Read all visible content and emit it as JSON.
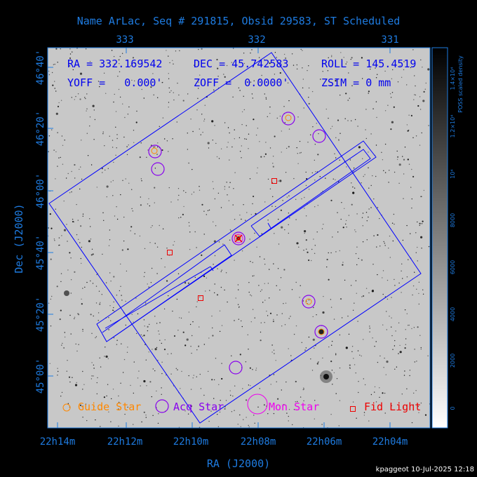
{
  "title": "Name ArLac, Seq # 291815, Obsid 29583, ST Scheduled",
  "footer": "kpaggeot 10-Jul-2025 12:18",
  "x_axis": {
    "label": "RA (J2000)",
    "bottom_ticks": [
      "22h14m",
      "22h12m",
      "22h10m",
      "22h08m",
      "22h06m",
      "22h04m"
    ],
    "top_ticks": [
      "333",
      "332",
      "331"
    ]
  },
  "y_axis": {
    "label": "Dec (J2000)",
    "ticks": [
      "46°40'",
      "46°20'",
      "46°00'",
      "45°40'",
      "45°20'",
      "45°00'"
    ]
  },
  "info": {
    "ra": "RA = 332.169542",
    "dec": "DEC = 45.742583",
    "roll": "ROLL = 145.4519",
    "yoff": "YOFF =   0.000'",
    "zoff": "ZOFF =  0.0000'",
    "zsim": "ZSIM = 0 mm"
  },
  "legend": {
    "guide": "Guide Star",
    "acq": "Acq Star",
    "mon": "Mon Star",
    "fid": "Fid Light"
  },
  "colorbar": {
    "ticks": [
      "0",
      "2000",
      "4000",
      "6000",
      "8000",
      "10⁴",
      "1.2×10⁴",
      "1.4×10⁴"
    ],
    "label": "POSS scaled density"
  },
  "colors": {
    "axis": "#1e7be0",
    "text_info": "#0000ee",
    "guide": "#ff8800",
    "acq": "#8800ee",
    "mon": "#ee00ee",
    "fid": "#ee0000",
    "outline": "#0000ff"
  }
}
